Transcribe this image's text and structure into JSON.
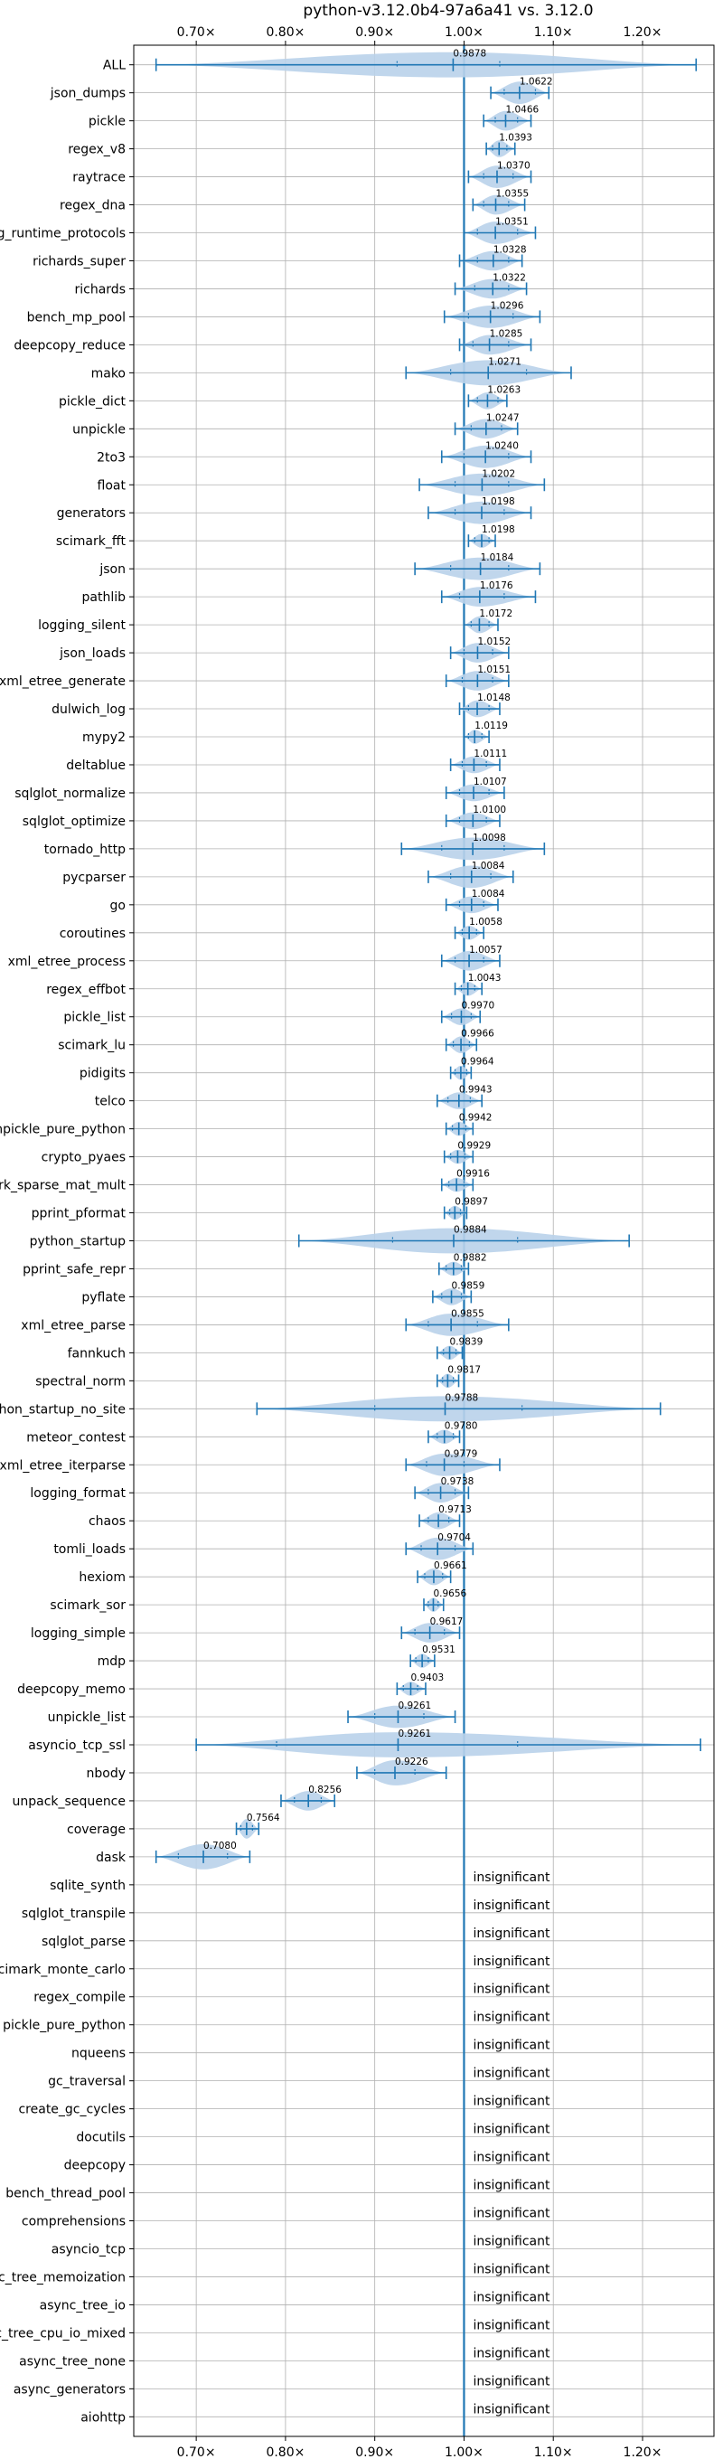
{
  "chart_data": {
    "type": "violin",
    "title": "python-v3.12.0b4-97a6a41 vs. 3.12.0",
    "xlabel": "",
    "ylabel": "",
    "xlim": [
      0.63,
      1.28
    ],
    "xticks": [
      0.7,
      0.8,
      0.9,
      1.0,
      1.1,
      1.2
    ],
    "xtick_labels": [
      "0.70×",
      "0.80×",
      "0.90×",
      "1.00×",
      "1.10×",
      "1.20×"
    ],
    "reference_line": 1.0,
    "grid": true,
    "colors": {
      "violin": "#b9d2ea",
      "line": "#1f77b4"
    },
    "insignificant_label": "insignificant",
    "benchmarks": [
      {
        "name": "ALL",
        "value": 0.9878,
        "label": "0.9878",
        "min": 0.655,
        "max": 1.26,
        "q1": 0.925,
        "q3": 1.04,
        "w": 0.45
      },
      {
        "name": "json_dumps",
        "value": 1.0622,
        "label": "1.0622",
        "min": 1.03,
        "max": 1.095,
        "q1": 1.045,
        "q3": 1.08,
        "w": 0.4
      },
      {
        "name": "pickle",
        "value": 1.0466,
        "label": "1.0466",
        "min": 1.022,
        "max": 1.075,
        "q1": 1.035,
        "q3": 1.06,
        "w": 0.35
      },
      {
        "name": "regex_v8",
        "value": 1.0393,
        "label": "1.0393",
        "min": 1.025,
        "max": 1.057,
        "q1": 1.032,
        "q3": 1.048,
        "w": 0.3
      },
      {
        "name": "raytrace",
        "value": 1.037,
        "label": "1.0370",
        "min": 1.005,
        "max": 1.075,
        "q1": 1.022,
        "q3": 1.055,
        "w": 0.4
      },
      {
        "name": "regex_dna",
        "value": 1.0355,
        "label": "1.0355",
        "min": 1.01,
        "max": 1.068,
        "q1": 1.022,
        "q3": 1.05,
        "w": 0.35
      },
      {
        "name": "typing_runtime_protocols",
        "value": 1.0351,
        "label": "1.0351",
        "min": 1.0,
        "max": 1.08,
        "q1": 1.015,
        "q3": 1.06,
        "w": 0.4
      },
      {
        "name": "richards_super",
        "value": 1.0328,
        "label": "1.0328",
        "min": 0.995,
        "max": 1.065,
        "q1": 1.015,
        "q3": 1.05,
        "w": 0.35
      },
      {
        "name": "richards",
        "value": 1.0322,
        "label": "1.0322",
        "min": 0.99,
        "max": 1.07,
        "q1": 1.012,
        "q3": 1.05,
        "w": 0.35
      },
      {
        "name": "bench_mp_pool",
        "value": 1.0296,
        "label": "1.0296",
        "min": 0.978,
        "max": 1.085,
        "q1": 1.005,
        "q3": 1.055,
        "w": 0.4
      },
      {
        "name": "deepcopy_reduce",
        "value": 1.0285,
        "label": "1.0285",
        "min": 0.995,
        "max": 1.075,
        "q1": 1.01,
        "q3": 1.05,
        "w": 0.35
      },
      {
        "name": "mako",
        "value": 1.0271,
        "label": "1.0271",
        "min": 0.935,
        "max": 1.12,
        "q1": 0.985,
        "q3": 1.07,
        "w": 0.45
      },
      {
        "name": "pickle_dict",
        "value": 1.0263,
        "label": "1.0263",
        "min": 1.005,
        "max": 1.048,
        "q1": 1.015,
        "q3": 1.038,
        "w": 0.3
      },
      {
        "name": "unpickle",
        "value": 1.0247,
        "label": "1.0247",
        "min": 0.99,
        "max": 1.06,
        "q1": 1.008,
        "q3": 1.042,
        "w": 0.35
      },
      {
        "name": "2to3",
        "value": 1.024,
        "label": "1.0240",
        "min": 0.975,
        "max": 1.075,
        "q1": 1.0,
        "q3": 1.05,
        "w": 0.4
      },
      {
        "name": "float",
        "value": 1.0202,
        "label": "1.0202",
        "min": 0.95,
        "max": 1.09,
        "q1": 0.99,
        "q3": 1.05,
        "w": 0.4
      },
      {
        "name": "generators",
        "value": 1.0198,
        "label": "1.0198",
        "min": 0.96,
        "max": 1.075,
        "q1": 0.99,
        "q3": 1.045,
        "w": 0.4
      },
      {
        "name": "scimark_fft",
        "value": 1.0198,
        "label": "1.0198",
        "min": 1.005,
        "max": 1.035,
        "q1": 1.012,
        "q3": 1.028,
        "w": 0.25
      },
      {
        "name": "json",
        "value": 1.0184,
        "label": "1.0184",
        "min": 0.945,
        "max": 1.085,
        "q1": 0.985,
        "q3": 1.05,
        "w": 0.4
      },
      {
        "name": "pathlib",
        "value": 1.0176,
        "label": "1.0176",
        "min": 0.975,
        "max": 1.08,
        "q1": 0.995,
        "q3": 1.045,
        "w": 0.35
      },
      {
        "name": "logging_silent",
        "value": 1.0172,
        "label": "1.0172",
        "min": 1.0,
        "max": 1.038,
        "q1": 1.008,
        "q3": 1.028,
        "w": 0.3
      },
      {
        "name": "json_loads",
        "value": 1.0152,
        "label": "1.0152",
        "min": 0.985,
        "max": 1.05,
        "q1": 1.0,
        "q3": 1.032,
        "w": 0.35
      },
      {
        "name": "xml_etree_generate",
        "value": 1.0151,
        "label": "1.0151",
        "min": 0.98,
        "max": 1.05,
        "q1": 0.998,
        "q3": 1.032,
        "w": 0.35
      },
      {
        "name": "dulwich_log",
        "value": 1.0148,
        "label": "1.0148",
        "min": 0.995,
        "max": 1.04,
        "q1": 1.005,
        "q3": 1.028,
        "w": 0.3
      },
      {
        "name": "mypy2",
        "value": 1.0119,
        "label": "1.0119",
        "min": 1.0,
        "max": 1.028,
        "q1": 1.005,
        "q3": 1.02,
        "w": 0.25
      },
      {
        "name": "deltablue",
        "value": 1.0111,
        "label": "1.0111",
        "min": 0.985,
        "max": 1.04,
        "q1": 0.998,
        "q3": 1.025,
        "w": 0.3
      },
      {
        "name": "sqlglot_normalize",
        "value": 1.0107,
        "label": "1.0107",
        "min": 0.98,
        "max": 1.045,
        "q1": 0.995,
        "q3": 1.028,
        "w": 0.3
      },
      {
        "name": "sqlglot_optimize",
        "value": 1.01,
        "label": "1.0100",
        "min": 0.98,
        "max": 1.04,
        "q1": 0.995,
        "q3": 1.025,
        "w": 0.3
      },
      {
        "name": "tornado_http",
        "value": 1.0098,
        "label": "1.0098",
        "min": 0.93,
        "max": 1.09,
        "q1": 0.975,
        "q3": 1.045,
        "w": 0.4
      },
      {
        "name": "pycparser",
        "value": 1.0084,
        "label": "1.0084",
        "min": 0.96,
        "max": 1.055,
        "q1": 0.985,
        "q3": 1.03,
        "w": 0.4
      },
      {
        "name": "go",
        "value": 1.0084,
        "label": "1.0084",
        "min": 0.98,
        "max": 1.038,
        "q1": 0.995,
        "q3": 1.022,
        "w": 0.3
      },
      {
        "name": "coroutines",
        "value": 1.0058,
        "label": "1.0058",
        "min": 0.99,
        "max": 1.022,
        "q1": 0.998,
        "q3": 1.014,
        "w": 0.25
      },
      {
        "name": "xml_etree_process",
        "value": 1.0057,
        "label": "1.0057",
        "min": 0.975,
        "max": 1.04,
        "q1": 0.99,
        "q3": 1.022,
        "w": 0.35
      },
      {
        "name": "regex_effbot",
        "value": 1.0043,
        "label": "1.0043",
        "min": 0.99,
        "max": 1.02,
        "q1": 0.997,
        "q3": 1.012,
        "w": 0.25
      },
      {
        "name": "pickle_list",
        "value": 0.997,
        "label": "0.9970",
        "min": 0.975,
        "max": 1.018,
        "q1": 0.986,
        "q3": 1.008,
        "w": 0.3
      },
      {
        "name": "scimark_lu",
        "value": 0.9966,
        "label": "0.9966",
        "min": 0.98,
        "max": 1.014,
        "q1": 0.988,
        "q3": 1.006,
        "w": 0.3
      },
      {
        "name": "pidigits",
        "value": 0.9964,
        "label": "0.9964",
        "min": 0.985,
        "max": 1.008,
        "q1": 0.99,
        "q3": 1.003,
        "w": 0.25
      },
      {
        "name": "telco",
        "value": 0.9943,
        "label": "0.9943",
        "min": 0.97,
        "max": 1.02,
        "q1": 0.982,
        "q3": 1.007,
        "w": 0.3
      },
      {
        "name": "unpickle_pure_python",
        "value": 0.9942,
        "label": "0.9942",
        "min": 0.98,
        "max": 1.01,
        "q1": 0.987,
        "q3": 1.002,
        "w": 0.25
      },
      {
        "name": "crypto_pyaes",
        "value": 0.9929,
        "label": "0.9929",
        "min": 0.978,
        "max": 1.01,
        "q1": 0.985,
        "q3": 1.001,
        "w": 0.25
      },
      {
        "name": "scimark_sparse_mat_mult",
        "value": 0.9916,
        "label": "0.9916",
        "min": 0.975,
        "max": 1.01,
        "q1": 0.983,
        "q3": 1.0,
        "w": 0.25
      },
      {
        "name": "pprint_pformat",
        "value": 0.9897,
        "label": "0.9897",
        "min": 0.978,
        "max": 1.003,
        "q1": 0.984,
        "q3": 0.996,
        "w": 0.25
      },
      {
        "name": "python_startup",
        "value": 0.9884,
        "label": "0.9884",
        "min": 0.815,
        "max": 1.185,
        "q1": 0.92,
        "q3": 1.06,
        "w": 0.45
      },
      {
        "name": "pprint_safe_repr",
        "value": 0.9882,
        "label": "0.9882",
        "min": 0.972,
        "max": 1.005,
        "q1": 0.98,
        "q3": 0.997,
        "w": 0.25
      },
      {
        "name": "pyflate",
        "value": 0.9859,
        "label": "0.9859",
        "min": 0.965,
        "max": 1.008,
        "q1": 0.975,
        "q3": 0.997,
        "w": 0.3
      },
      {
        "name": "xml_etree_parse",
        "value": 0.9855,
        "label": "0.9855",
        "min": 0.935,
        "max": 1.05,
        "q1": 0.96,
        "q3": 1.015,
        "w": 0.4
      },
      {
        "name": "fannkuch",
        "value": 0.9839,
        "label": "0.9839",
        "min": 0.97,
        "max": 0.998,
        "q1": 0.977,
        "q3": 0.991,
        "w": 0.25
      },
      {
        "name": "spectral_norm",
        "value": 0.9817,
        "label": "0.9817",
        "min": 0.97,
        "max": 0.994,
        "q1": 0.976,
        "q3": 0.988,
        "w": 0.25
      },
      {
        "name": "python_startup_no_site",
        "value": 0.9788,
        "label": "0.9788",
        "min": 0.768,
        "max": 1.22,
        "q1": 0.9,
        "q3": 1.065,
        "w": 0.45
      },
      {
        "name": "meteor_contest",
        "value": 0.978,
        "label": "0.9780",
        "min": 0.96,
        "max": 0.995,
        "q1": 0.97,
        "q3": 0.988,
        "w": 0.25
      },
      {
        "name": "xml_etree_iterparse",
        "value": 0.9779,
        "label": "0.9779",
        "min": 0.935,
        "max": 1.04,
        "q1": 0.958,
        "q3": 1.0,
        "w": 0.4
      },
      {
        "name": "logging_format",
        "value": 0.9738,
        "label": "0.9738",
        "min": 0.945,
        "max": 1.005,
        "q1": 0.96,
        "q3": 0.99,
        "w": 0.35
      },
      {
        "name": "chaos",
        "value": 0.9713,
        "label": "0.9713",
        "min": 0.95,
        "max": 0.995,
        "q1": 0.96,
        "q3": 0.983,
        "w": 0.3
      },
      {
        "name": "tomli_loads",
        "value": 0.9704,
        "label": "0.9704",
        "min": 0.935,
        "max": 1.01,
        "q1": 0.952,
        "q3": 0.99,
        "w": 0.4
      },
      {
        "name": "hexiom",
        "value": 0.9661,
        "label": "0.9661",
        "min": 0.948,
        "max": 0.985,
        "q1": 0.956,
        "q3": 0.976,
        "w": 0.3
      },
      {
        "name": "scimark_sor",
        "value": 0.9656,
        "label": "0.9656",
        "min": 0.955,
        "max": 0.977,
        "q1": 0.96,
        "q3": 0.971,
        "w": 0.25
      },
      {
        "name": "logging_simple",
        "value": 0.9617,
        "label": "0.9617",
        "min": 0.93,
        "max": 0.995,
        "q1": 0.945,
        "q3": 0.978,
        "w": 0.35
      },
      {
        "name": "mdp",
        "value": 0.9531,
        "label": "0.9531",
        "min": 0.94,
        "max": 0.967,
        "q1": 0.946,
        "q3": 0.96,
        "w": 0.25
      },
      {
        "name": "deepcopy_memo",
        "value": 0.9403,
        "label": "0.9403",
        "min": 0.925,
        "max": 0.957,
        "q1": 0.932,
        "q3": 0.948,
        "w": 0.25
      },
      {
        "name": "unpickle_list",
        "value": 0.9261,
        "label": "0.9261",
        "min": 0.87,
        "max": 0.99,
        "q1": 0.9,
        "q3": 0.955,
        "w": 0.4
      },
      {
        "name": "asyncio_tcp_ssl",
        "value": 0.9261,
        "label": "0.9261",
        "min": 0.7,
        "max": 1.265,
        "q1": 0.79,
        "q3": 1.06,
        "w": 0.45
      },
      {
        "name": "nbody",
        "value": 0.9226,
        "label": "0.9226",
        "min": 0.88,
        "max": 0.98,
        "q1": 0.9,
        "q3": 0.945,
        "w": 0.45
      },
      {
        "name": "unpack_sequence",
        "value": 0.8256,
        "label": "0.8256",
        "min": 0.795,
        "max": 0.855,
        "q1": 0.81,
        "q3": 0.84,
        "w": 0.35
      },
      {
        "name": "coverage",
        "value": 0.7564,
        "label": "0.7564",
        "min": 0.745,
        "max": 0.77,
        "q1": 0.75,
        "q3": 0.763,
        "w": 0.35
      },
      {
        "name": "dask",
        "value": 0.708,
        "label": "0.7080",
        "min": 0.655,
        "max": 0.76,
        "q1": 0.68,
        "q3": 0.735,
        "w": 0.45
      },
      {
        "name": "sqlite_synth",
        "insignificant": true
      },
      {
        "name": "sqlglot_transpile",
        "insignificant": true
      },
      {
        "name": "sqlglot_parse",
        "insignificant": true
      },
      {
        "name": "scimark_monte_carlo",
        "insignificant": true
      },
      {
        "name": "regex_compile",
        "insignificant": true
      },
      {
        "name": "pickle_pure_python",
        "insignificant": true
      },
      {
        "name": "nqueens",
        "insignificant": true
      },
      {
        "name": "gc_traversal",
        "insignificant": true
      },
      {
        "name": "create_gc_cycles",
        "insignificant": true
      },
      {
        "name": "docutils",
        "insignificant": true
      },
      {
        "name": "deepcopy",
        "insignificant": true
      },
      {
        "name": "bench_thread_pool",
        "insignificant": true
      },
      {
        "name": "comprehensions",
        "insignificant": true
      },
      {
        "name": "asyncio_tcp",
        "insignificant": true
      },
      {
        "name": "async_tree_memoization",
        "insignificant": true
      },
      {
        "name": "async_tree_io",
        "insignificant": true
      },
      {
        "name": "async_tree_cpu_io_mixed",
        "insignificant": true
      },
      {
        "name": "async_tree_none",
        "insignificant": true
      },
      {
        "name": "async_generators",
        "insignificant": true
      },
      {
        "name": "aiohttp",
        "insignificant": true
      }
    ]
  }
}
